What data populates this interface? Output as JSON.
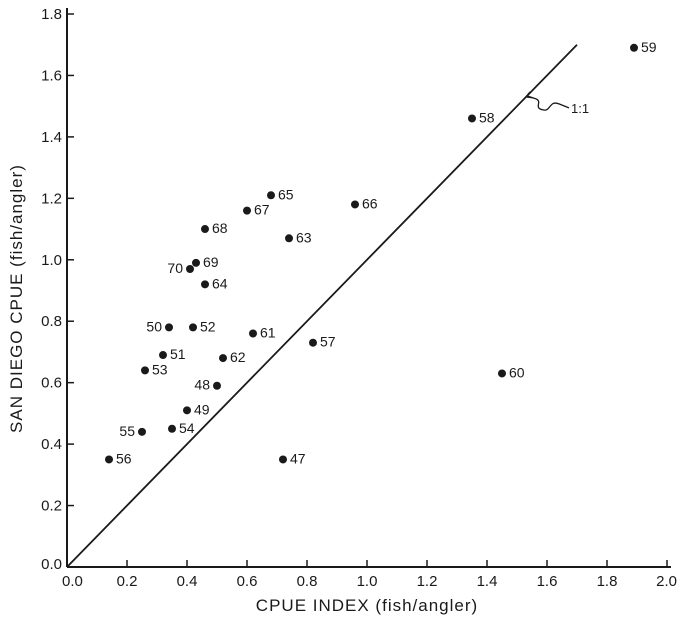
{
  "chart_data": {
    "type": "scatter",
    "title": "",
    "xlabel": "CPUE INDEX (fish/angler)",
    "ylabel": "SAN DIEGO CPUE (fish/angler)",
    "xlim": [
      0,
      2.0
    ],
    "ylim": [
      0,
      1.8
    ],
    "x_ticks": [
      "0.0",
      "0.2",
      "0.4",
      "0.6",
      "0.8",
      "1.0",
      "1.2",
      "1.4",
      "1.6",
      "1.8",
      "2.0"
    ],
    "y_ticks": [
      "0.0",
      "0.2",
      "0.4",
      "0.6",
      "0.8",
      "1.0",
      "1.2",
      "1.4",
      "1.6",
      "1.8"
    ],
    "grid": false,
    "reference_line": {
      "label": "1:1",
      "from": [
        0,
        0
      ],
      "to": [
        1.7,
        1.7
      ]
    },
    "points": [
      {
        "label": "47",
        "x": 0.72,
        "y": 0.35
      },
      {
        "label": "48",
        "x": 0.5,
        "y": 0.59
      },
      {
        "label": "49",
        "x": 0.4,
        "y": 0.51
      },
      {
        "label": "50",
        "x": 0.34,
        "y": 0.78
      },
      {
        "label": "51",
        "x": 0.32,
        "y": 0.69
      },
      {
        "label": "52",
        "x": 0.42,
        "y": 0.78
      },
      {
        "label": "53",
        "x": 0.26,
        "y": 0.64
      },
      {
        "label": "54",
        "x": 0.35,
        "y": 0.45
      },
      {
        "label": "55",
        "x": 0.25,
        "y": 0.44
      },
      {
        "label": "56",
        "x": 0.14,
        "y": 0.35
      },
      {
        "label": "57",
        "x": 0.82,
        "y": 0.73
      },
      {
        "label": "58",
        "x": 1.35,
        "y": 1.46
      },
      {
        "label": "59",
        "x": 1.89,
        "y": 1.69
      },
      {
        "label": "60",
        "x": 1.45,
        "y": 0.63
      },
      {
        "label": "61",
        "x": 0.62,
        "y": 0.76
      },
      {
        "label": "62",
        "x": 0.52,
        "y": 0.68
      },
      {
        "label": "63",
        "x": 0.74,
        "y": 1.07
      },
      {
        "label": "64",
        "x": 0.46,
        "y": 0.92
      },
      {
        "label": "65",
        "x": 0.68,
        "y": 1.21
      },
      {
        "label": "66",
        "x": 0.96,
        "y": 1.18
      },
      {
        "label": "67",
        "x": 0.6,
        "y": 1.16
      },
      {
        "label": "68",
        "x": 0.46,
        "y": 1.1
      },
      {
        "label": "69",
        "x": 0.43,
        "y": 0.99
      },
      {
        "label": "70",
        "x": 0.41,
        "y": 0.97
      }
    ]
  }
}
